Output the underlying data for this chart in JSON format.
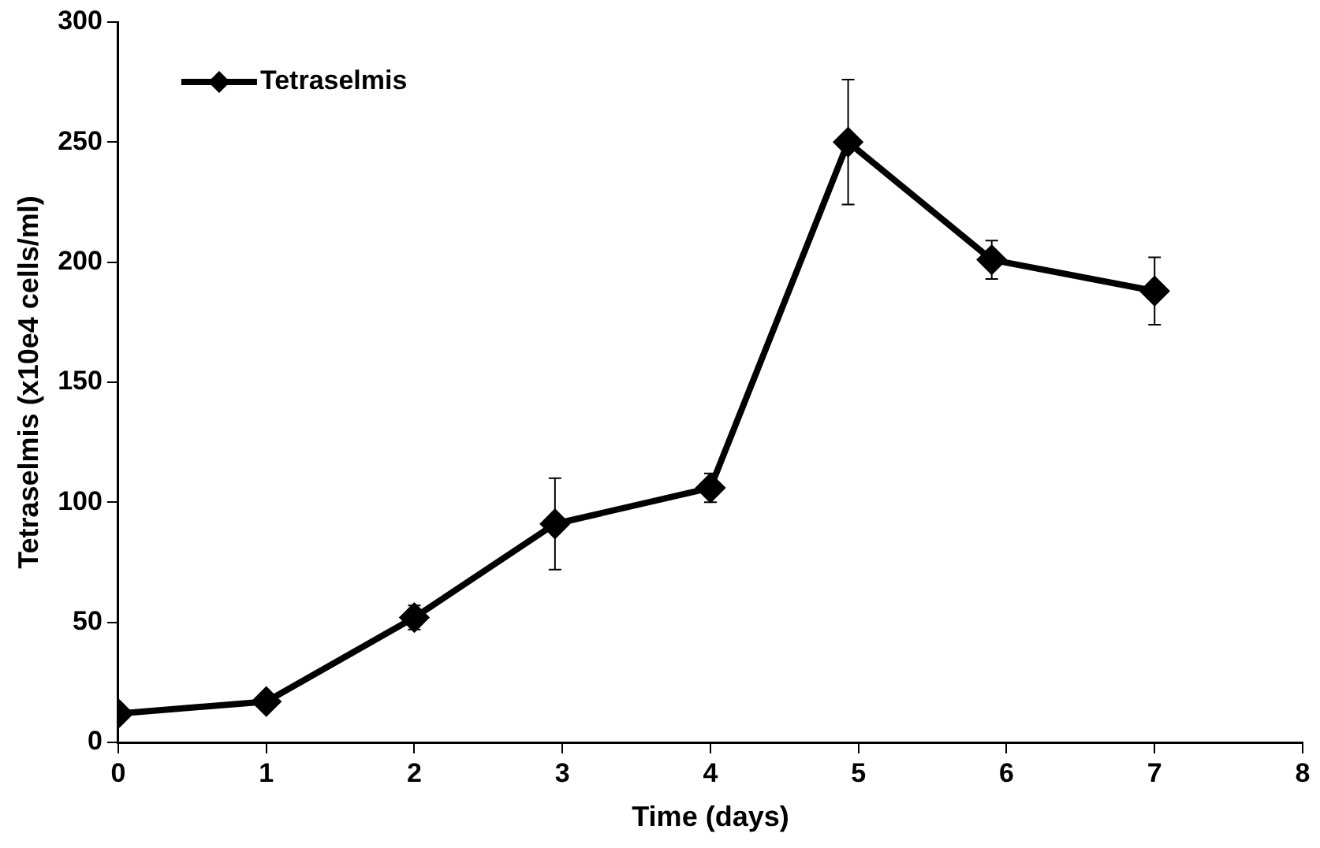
{
  "chart_data": {
    "type": "line",
    "xlabel": "Time (days)",
    "ylabel": "Tetraselmis (x10e4 cells/ml)",
    "x": [
      0,
      1,
      2,
      2.95,
      4,
      4.93,
      5.9,
      7
    ],
    "series": [
      {
        "name": "Tetraselmis",
        "color": "#000000",
        "values": [
          12,
          17,
          52,
          91,
          106,
          250,
          201,
          188
        ],
        "errors": [
          null,
          null,
          5,
          19,
          6,
          26,
          8,
          14
        ]
      }
    ],
    "xlim": [
      0,
      8
    ],
    "xticks": [
      0,
      1,
      2,
      3,
      4,
      5,
      6,
      7,
      8
    ],
    "ylim": [
      0,
      300
    ],
    "yticks": [
      0,
      50,
      100,
      150,
      200,
      250,
      300
    ],
    "grid": false,
    "legend": "top left",
    "marker": "diamond",
    "line_style": "solid"
  }
}
